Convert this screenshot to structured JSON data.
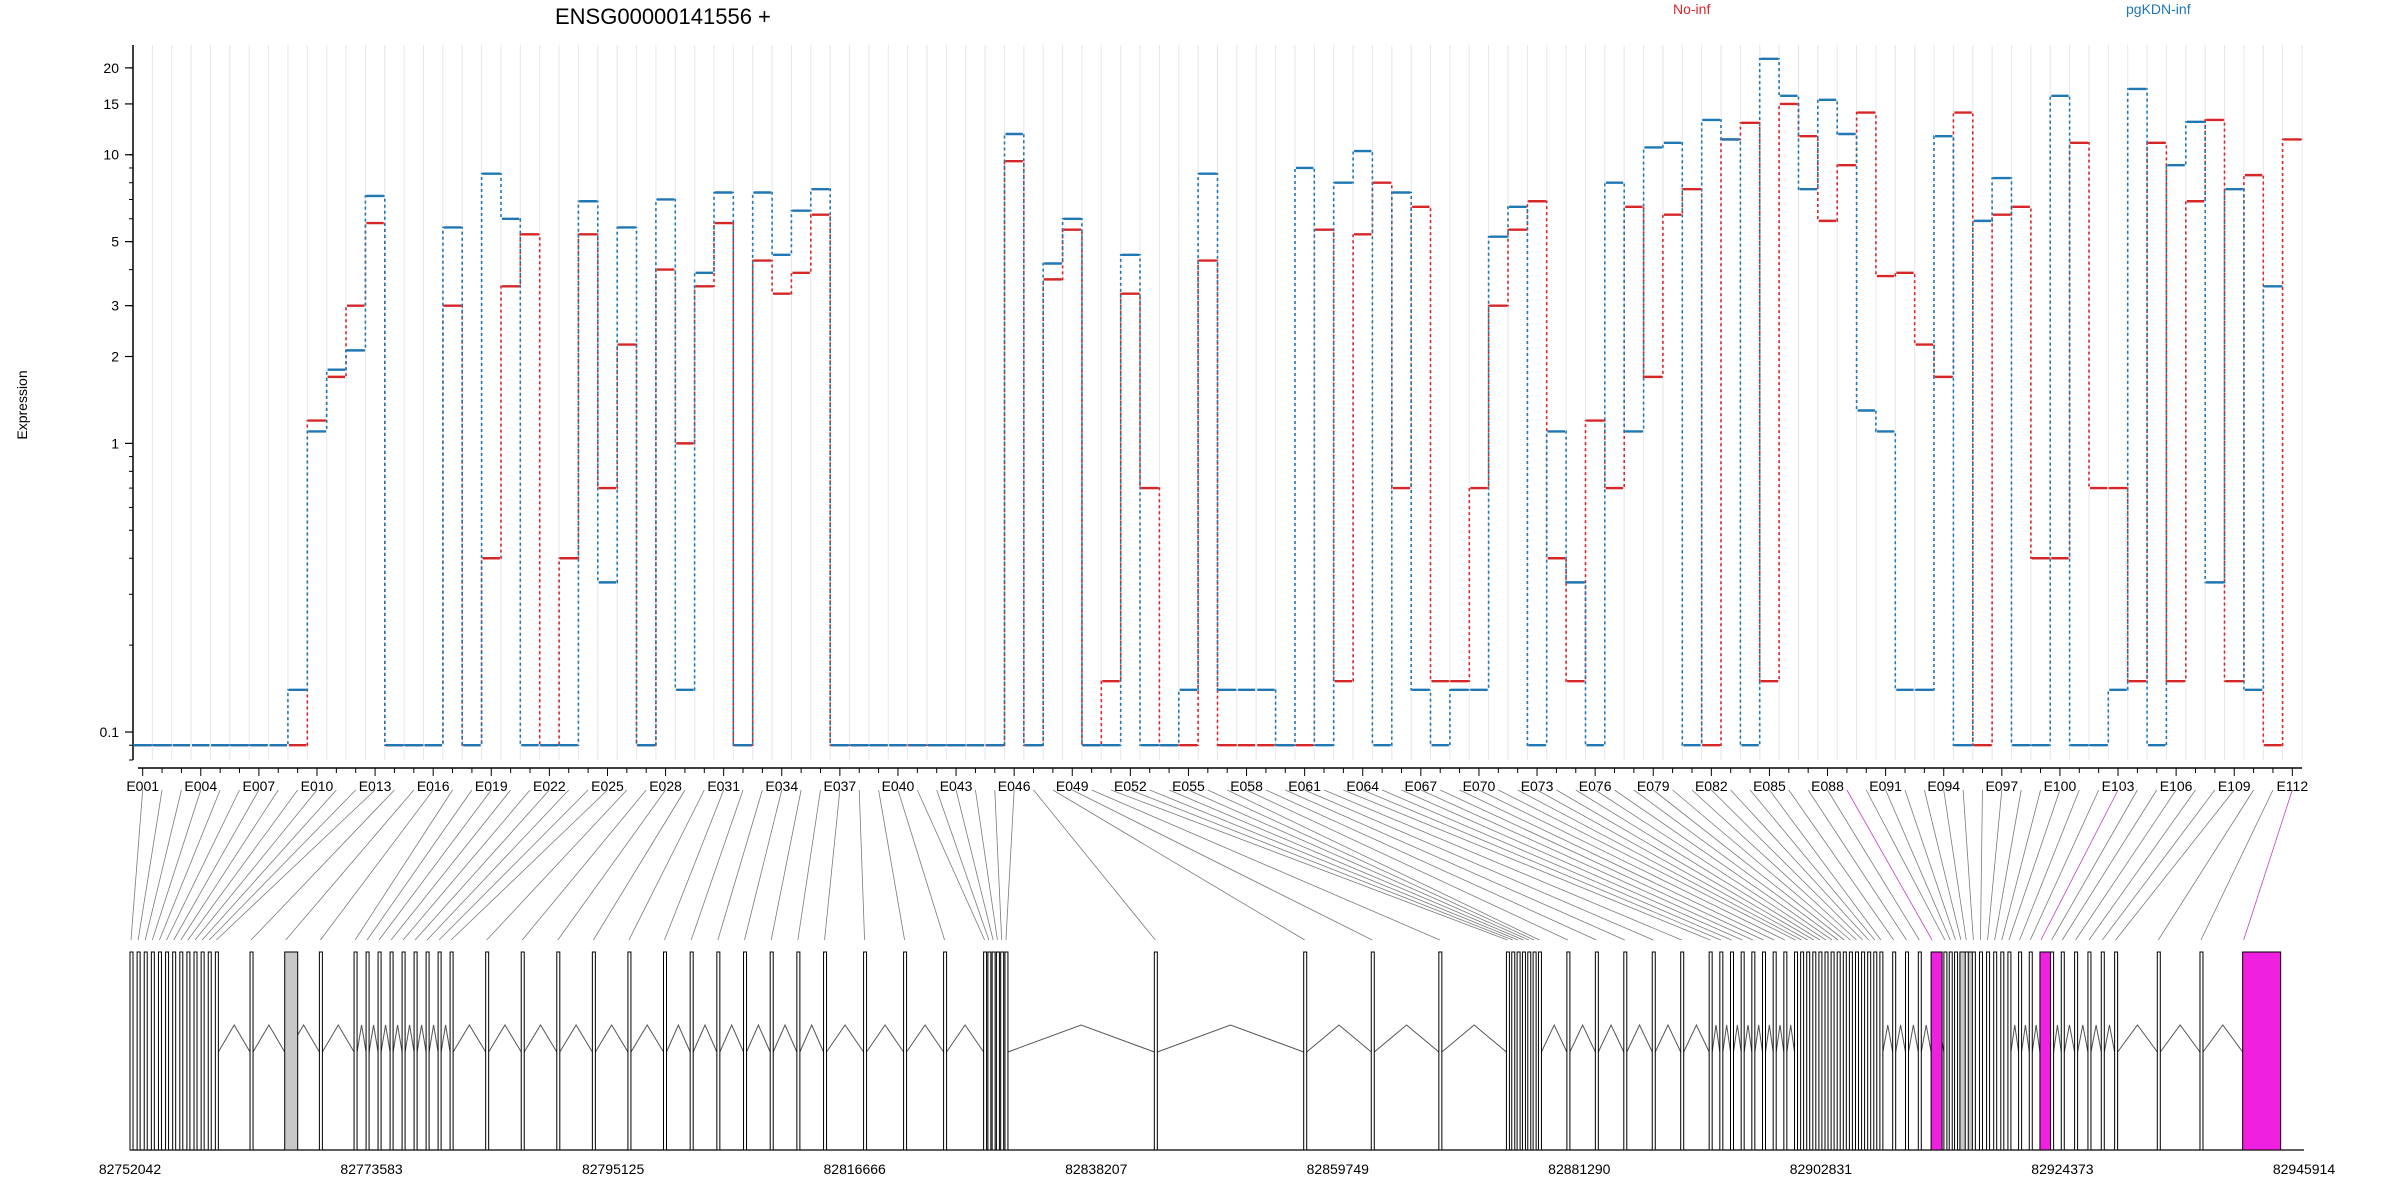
{
  "chart_data": {
    "type": "line",
    "title": "ENSG00000141556 +",
    "ylabel": "Expression",
    "xlabel": "",
    "yscale": "log",
    "ylim": [
      0.08,
      24
    ],
    "ytick_values": [
      0.1,
      1,
      2,
      3,
      5,
      10,
      15,
      20
    ],
    "ytick_labels": [
      "0.1",
      "1",
      "2",
      "3",
      "5",
      "10",
      "15",
      "20"
    ],
    "grid": "vertical-per-exon",
    "legend_placement": "top-right",
    "series_colors": [
      "#d62728",
      "#1f77b4"
    ],
    "exon_labels_shown": [
      "E001",
      "E004",
      "E007",
      "E010",
      "E013",
      "E016",
      "E019",
      "E022",
      "E025",
      "E028",
      "E031",
      "E034",
      "E037",
      "E040",
      "E043",
      "E046",
      "E049",
      "E052",
      "E055",
      "E058",
      "E061",
      "E064",
      "E067",
      "E070",
      "E073",
      "E076",
      "E079",
      "E082",
      "E085",
      "E088",
      "E091",
      "E094",
      "E097",
      "E100",
      "E103",
      "E106",
      "E109",
      "E112"
    ],
    "series": [
      {
        "name": "No-inf",
        "color": "#d62728",
        "values": [
          0.09,
          0.09,
          0.09,
          0.09,
          0.09,
          0.09,
          0.09,
          0.09,
          0.09,
          1.2,
          1.7,
          3,
          5.8,
          0.09,
          0.09,
          0.09,
          3,
          0.09,
          0.4,
          3.5,
          5.3,
          0.09,
          0.4,
          5.3,
          0.7,
          2.2,
          0.09,
          4,
          1,
          3.5,
          5.8,
          0.09,
          4.3,
          3.3,
          3.9,
          6.2,
          0.09,
          0.09,
          0.09,
          0.09,
          0.09,
          0.09,
          0.09,
          0.09,
          0.09,
          9.5,
          0.09,
          3.7,
          5.5,
          0.09,
          0.15,
          3.3,
          0.7,
          0.09,
          0.09,
          4.3,
          0.09,
          0.09,
          0.09,
          0.09,
          0.09,
          5.5,
          0.15,
          5.3,
          8,
          0.7,
          6.6,
          0.15,
          0.15,
          0.7,
          3,
          5.5,
          6.9,
          0.4,
          0.15,
          1.2,
          0.7,
          6.6,
          1.7,
          6.2,
          7.6,
          0.09,
          11.3,
          12.9,
          0.15,
          15,
          11.6,
          5.9,
          9.2,
          14,
          3.8,
          3.9,
          2.2,
          1.7,
          14,
          0.09,
          6.2,
          6.6,
          0.4,
          0.4,
          11,
          0.7,
          0.7,
          0.15,
          11,
          0.15,
          6.9,
          13.2,
          0.15,
          8.5,
          0.09,
          11.3
        ]
      },
      {
        "name": "pgKDN-inf",
        "color": "#1f77b4",
        "values": [
          0.09,
          0.09,
          0.09,
          0.09,
          0.09,
          0.09,
          0.09,
          0.09,
          0.14,
          1.1,
          1.8,
          2.1,
          7.2,
          0.09,
          0.09,
          0.09,
          5.6,
          0.09,
          8.6,
          6,
          0.09,
          0.09,
          0.09,
          6.9,
          0.33,
          5.6,
          0.09,
          7,
          0.14,
          3.9,
          7.4,
          0.09,
          7.4,
          4.5,
          6.4,
          7.6,
          0.09,
          0.09,
          0.09,
          0.09,
          0.09,
          0.09,
          0.09,
          0.09,
          0.09,
          11.8,
          0.09,
          4.2,
          6,
          0.09,
          0.09,
          4.5,
          0.09,
          0.09,
          0.14,
          8.6,
          0.14,
          0.14,
          0.14,
          0.09,
          9,
          0.09,
          8,
          10.3,
          0.09,
          7.4,
          0.14,
          0.09,
          0.14,
          0.14,
          5.2,
          6.6,
          0.09,
          1.1,
          0.33,
          0.09,
          8,
          1.1,
          10.6,
          11,
          0.09,
          13.2,
          11.3,
          0.09,
          21.5,
          16,
          7.6,
          15.5,
          11.8,
          1.3,
          1.1,
          0.14,
          0.14,
          11.6,
          0.09,
          5.9,
          8.3,
          0.09,
          0.09,
          16,
          0.09,
          0.09,
          0.14,
          16.9,
          0.09,
          9.2,
          13,
          0.33,
          7.6,
          0.14,
          3.5
        ]
      }
    ],
    "genomic_axis": {
      "tick_labels": [
        "82752042",
        "82773583",
        "82795125",
        "82816666",
        "82838207",
        "82859749",
        "82881290",
        "82902831",
        "82924373",
        "82945914"
      ]
    }
  }
}
